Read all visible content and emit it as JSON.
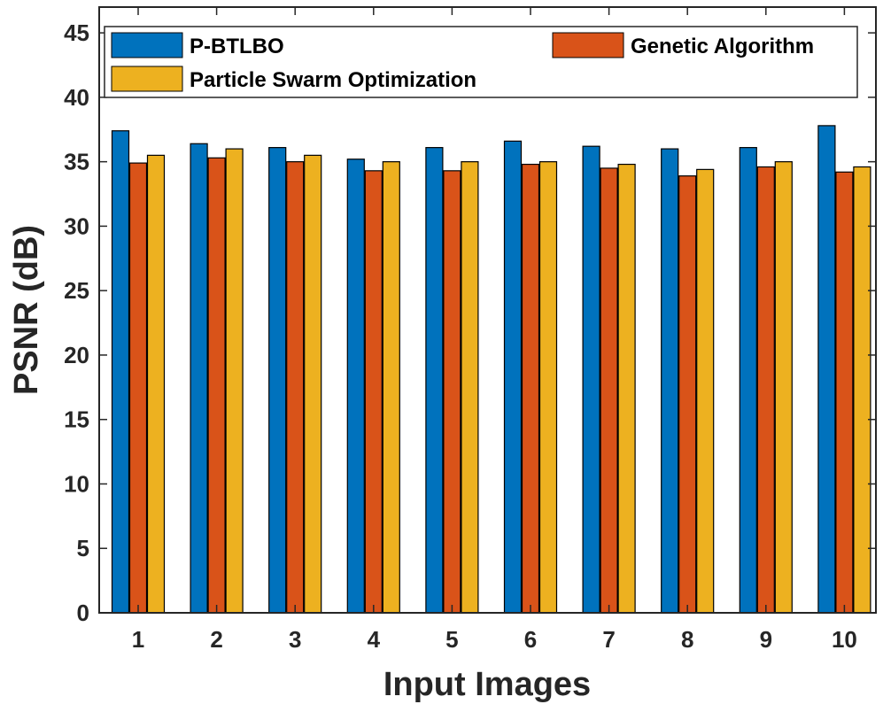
{
  "chart_data": {
    "type": "bar",
    "title": "",
    "xlabel": "Input Images",
    "ylabel": "PSNR (dB)",
    "ylim": [
      0,
      47
    ],
    "yticks": [
      0,
      5,
      10,
      15,
      20,
      25,
      30,
      35,
      40,
      45
    ],
    "categories": [
      "1",
      "2",
      "3",
      "4",
      "5",
      "6",
      "7",
      "8",
      "9",
      "10"
    ],
    "series": [
      {
        "name": "P-BTLBO",
        "color": "#0072BD",
        "values": [
          37.4,
          36.4,
          36.1,
          35.2,
          36.1,
          36.6,
          36.2,
          36.0,
          36.1,
          37.8
        ]
      },
      {
        "name": "Genetic Algorithm",
        "color": "#D95319",
        "values": [
          34.9,
          35.3,
          35.0,
          34.3,
          34.3,
          34.8,
          34.5,
          33.9,
          34.6,
          34.2
        ]
      },
      {
        "name": "Particle Swarm Optimization",
        "color": "#EDB120",
        "values": [
          35.5,
          36.0,
          35.5,
          35.0,
          35.0,
          35.0,
          34.8,
          34.4,
          35.0,
          34.6
        ]
      }
    ],
    "legend_position": "top"
  }
}
